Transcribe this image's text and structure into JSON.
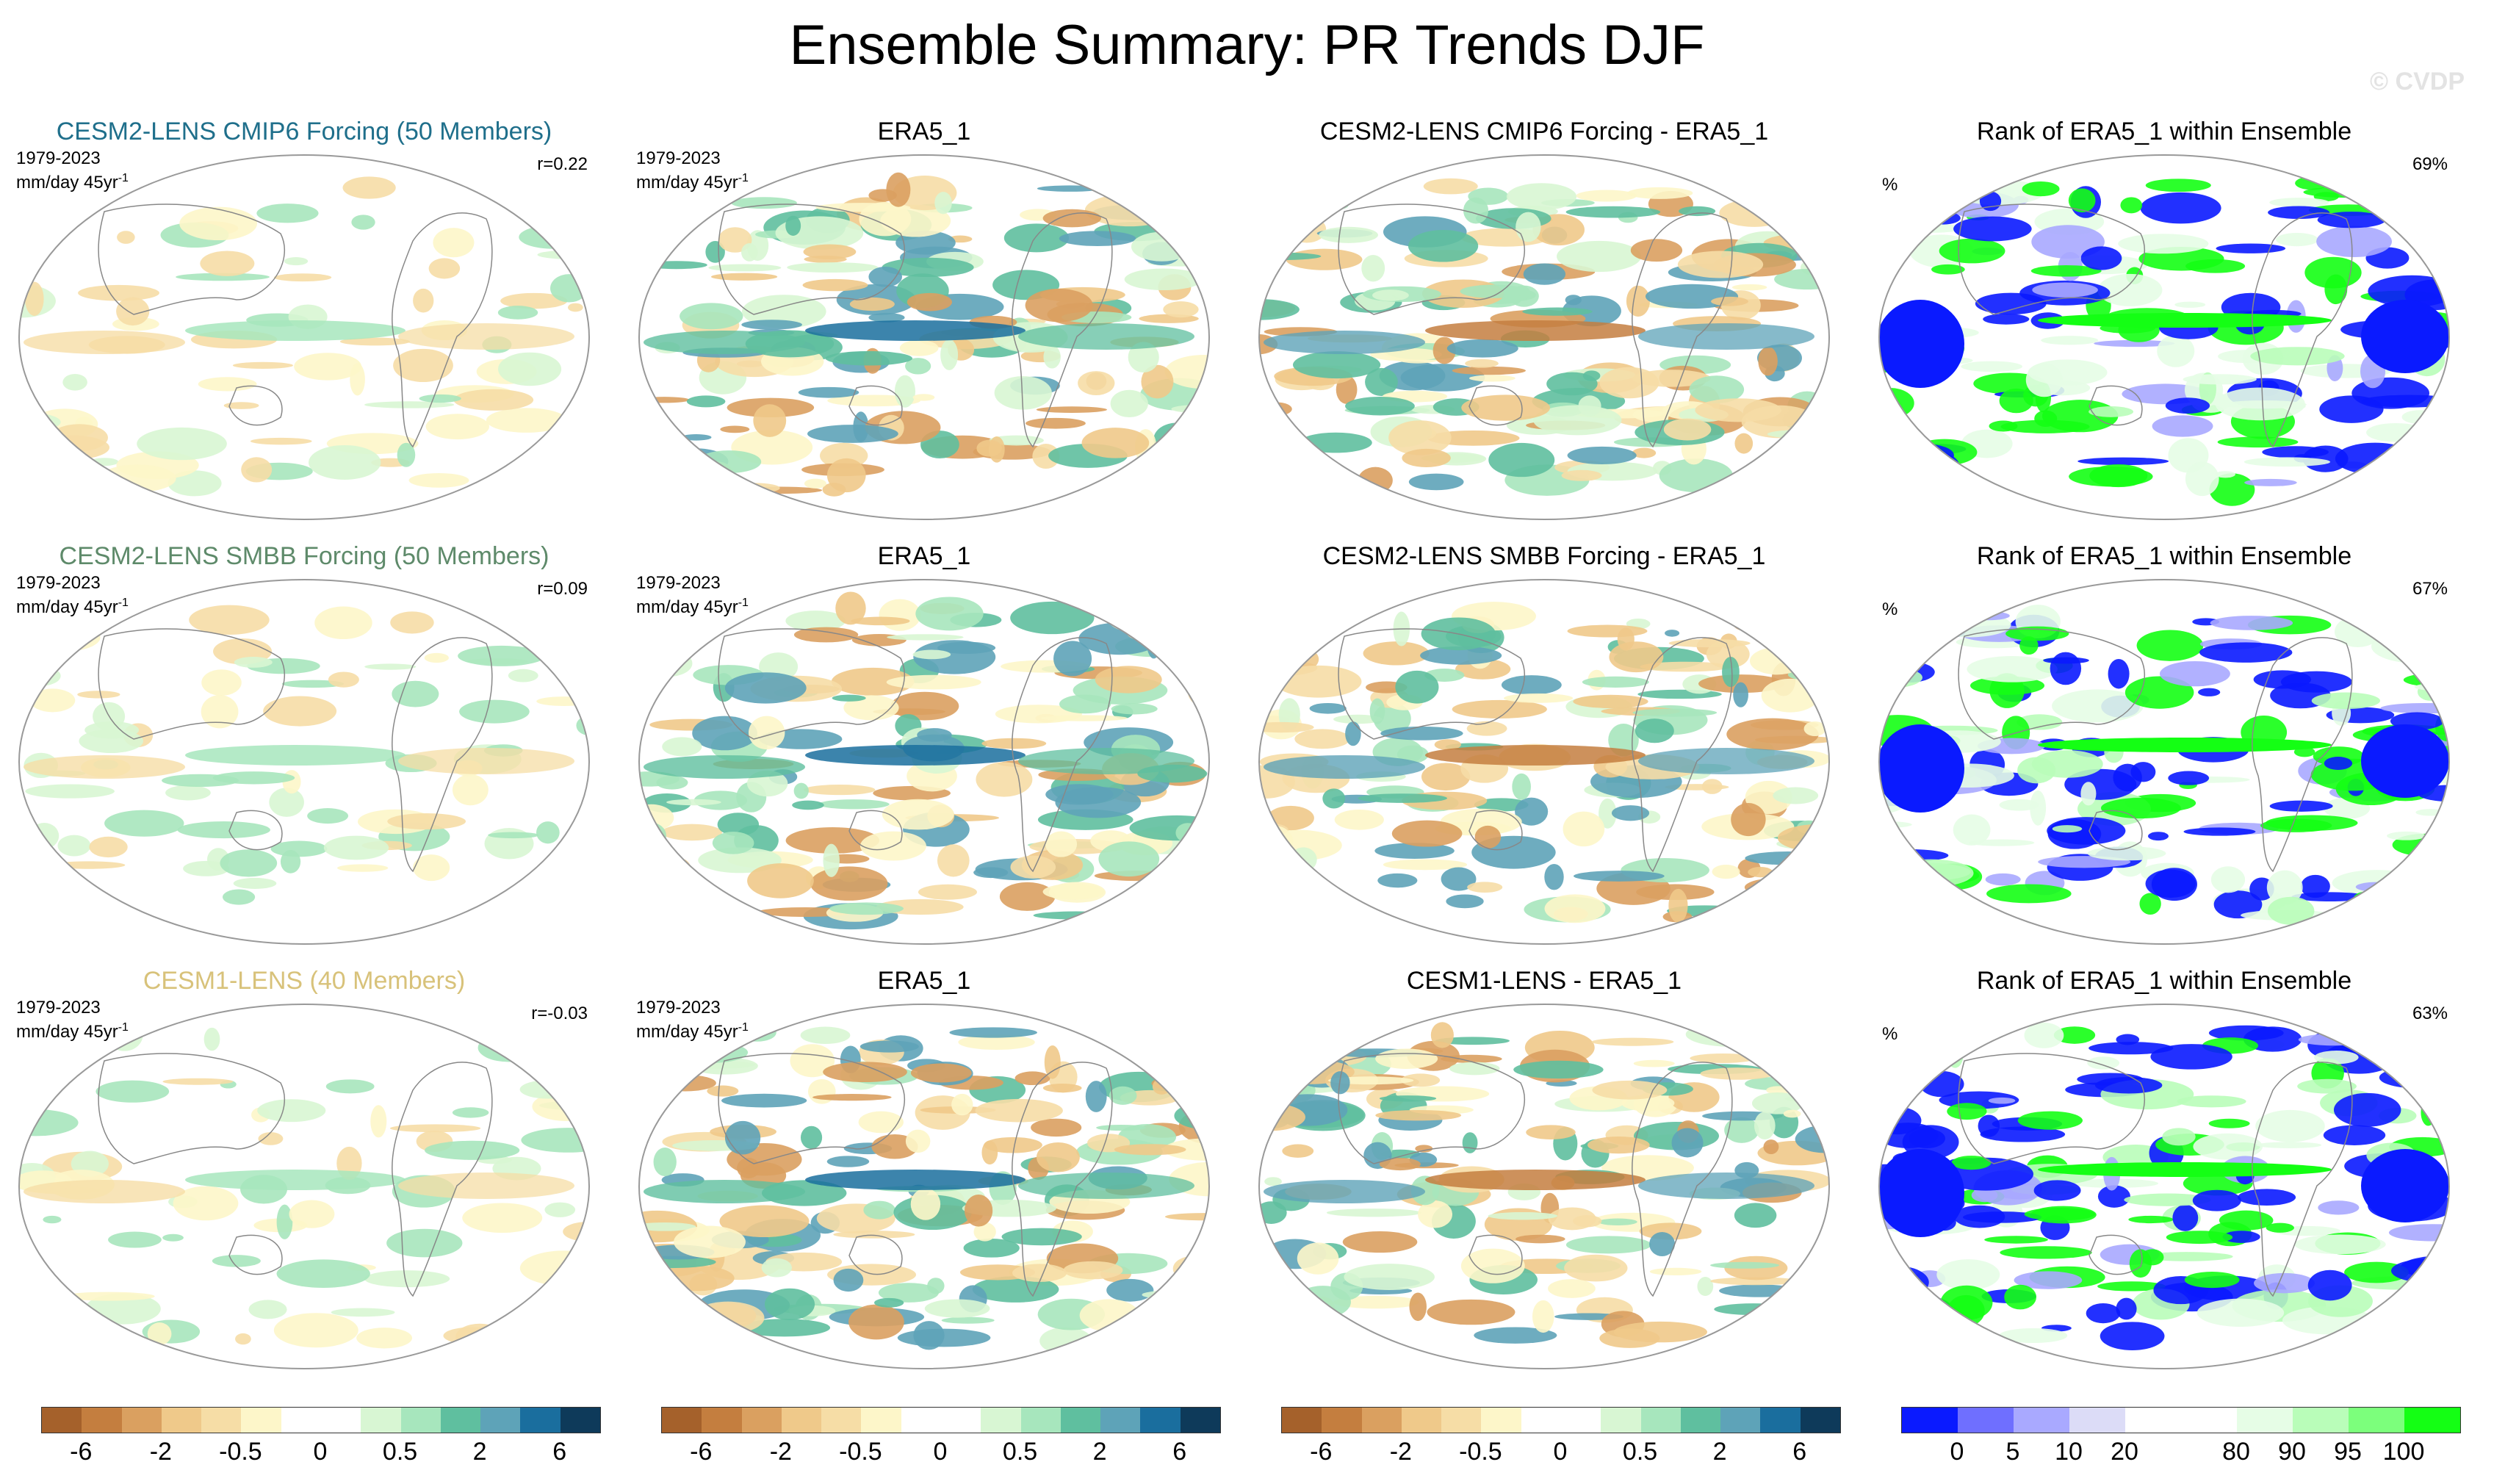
{
  "title": "Ensemble Summary: PR Trends DJF",
  "watermark": "© CVDP",
  "period": "1979-2023",
  "units_base": "mm/day 45yr",
  "units_exp": "-1",
  "pct_label": "%",
  "rows": [
    {
      "ensemble_title": "CESM2-LENS CMIP6 Forcing (50 Members)",
      "ensemble_color": "#1f6f8b",
      "r": "r=0.22",
      "obs_title": "ERA5_1",
      "diff_title": "CESM2-LENS CMIP6 Forcing - ERA5_1",
      "rank_title": "Rank of ERA5_1 within Ensemble",
      "rank_pct": "69%"
    },
    {
      "ensemble_title": "CESM2-LENS SMBB Forcing (50 Members)",
      "ensemble_color": "#5e8a6a",
      "r": "r=0.09",
      "obs_title": "ERA5_1",
      "diff_title": "CESM2-LENS SMBB Forcing - ERA5_1",
      "rank_title": "Rank of ERA5_1 within Ensemble",
      "rank_pct": "67%"
    },
    {
      "ensemble_title": "CESM1-LENS (40 Members)",
      "ensemble_color": "#d8c27a",
      "r": "r=-0.03",
      "obs_title": "ERA5_1",
      "diff_title": "CESM1-LENS - ERA5_1",
      "rank_title": "Rank of ERA5_1 within Ensemble",
      "rank_pct": "63%"
    }
  ],
  "colorbars": {
    "trend": {
      "colors": [
        "#a5612b",
        "#c47e3f",
        "#daa060",
        "#efc98a",
        "#f6dda6",
        "#fdf6c9",
        "#ffffff",
        "#ffffff",
        "#d8f6d3",
        "#a7e6bd",
        "#5fbf9f",
        "#5ea3b8",
        "#1a6e9e",
        "#0e3a5a"
      ],
      "labels": [
        {
          "t": "-6",
          "pos": 1
        },
        {
          "t": "-2",
          "pos": 3
        },
        {
          "t": "-0.5",
          "pos": 5
        },
        {
          "t": "0",
          "pos": 7
        },
        {
          "t": "0.5",
          "pos": 9
        },
        {
          "t": "2",
          "pos": 11
        },
        {
          "t": "6",
          "pos": 13
        }
      ]
    },
    "rank": {
      "colors": [
        "#0a1aff",
        "#6f6fff",
        "#a9a9ff",
        "#dcdcf7",
        "#ffffff",
        "#ffffff",
        "#e6fde6",
        "#b9fdb9",
        "#7cff7c",
        "#14ff14"
      ],
      "labels": [
        {
          "t": "0",
          "pos": 1
        },
        {
          "t": "5",
          "pos": 2
        },
        {
          "t": "10",
          "pos": 3
        },
        {
          "t": "20",
          "pos": 4
        },
        {
          "t": "80",
          "pos": 6
        },
        {
          "t": "90",
          "pos": 7
        },
        {
          "t": "95",
          "pos": 8
        },
        {
          "t": "100",
          "pos": 9
        }
      ]
    }
  }
}
